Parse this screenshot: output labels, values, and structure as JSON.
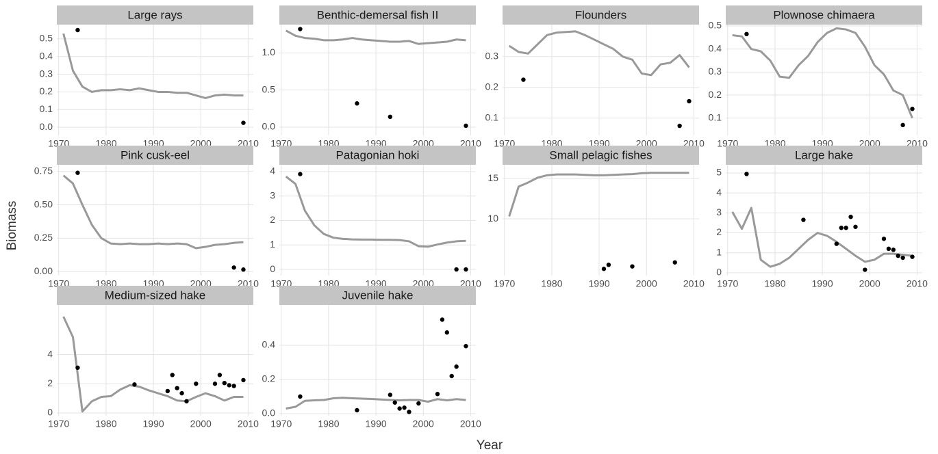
{
  "xlabel": "Year",
  "ylabel": "Biomass",
  "chart_data": [
    {
      "type": "line",
      "title": "Large rays",
      "xlim": [
        1969.6,
        2011.1
      ],
      "xticks": [
        1970,
        1980,
        1990,
        2000,
        2010
      ],
      "ylim": [
        -0.046,
        0.581
      ],
      "yticks": [
        {
          "value": 0,
          "label": "0.0"
        },
        0.1,
        0.2,
        0.3,
        0.4,
        0.5
      ],
      "grid": true,
      "series": [
        {
          "kind": "line",
          "color": "#999999",
          "x": [
            1971,
            1973,
            1975,
            1977,
            1979,
            1981,
            1983,
            1985,
            1987,
            1989,
            1991,
            1993,
            1995,
            1997,
            1999,
            2001,
            2003,
            2005,
            2007,
            2009
          ],
          "values": [
            0.53,
            0.32,
            0.23,
            0.2,
            0.21,
            0.21,
            0.215,
            0.21,
            0.22,
            0.21,
            0.2,
            0.2,
            0.195,
            0.195,
            0.18,
            0.165,
            0.18,
            0.185,
            0.18,
            0.18
          ]
        },
        {
          "kind": "scatter",
          "color": "#000000",
          "x": [
            1974,
            2009
          ],
          "values": [
            0.55,
            0.025
          ]
        }
      ]
    },
    {
      "type": "line",
      "title": "Benthic-demersal fish II",
      "xlim": [
        1969.6,
        2011.1
      ],
      "xticks": [
        1970,
        1980,
        1990,
        2000,
        2010
      ],
      "ylim": [
        -0.11,
        1.38
      ],
      "yticks": [
        {
          "value": 0,
          "label": "0.0"
        },
        0.5,
        {
          "value": 1,
          "label": "1.0"
        }
      ],
      "grid": true,
      "series": [
        {
          "kind": "line",
          "color": "#999999",
          "x": [
            1971,
            1973,
            1975,
            1977,
            1979,
            1981,
            1983,
            1985,
            1987,
            1989,
            1991,
            1993,
            1995,
            1997,
            1999,
            2001,
            2003,
            2005,
            2007,
            2009
          ],
          "values": [
            1.3,
            1.23,
            1.2,
            1.19,
            1.17,
            1.17,
            1.18,
            1.2,
            1.18,
            1.17,
            1.16,
            1.15,
            1.15,
            1.16,
            1.12,
            1.13,
            1.14,
            1.15,
            1.18,
            1.17
          ]
        },
        {
          "kind": "scatter",
          "color": "#000000",
          "x": [
            1974,
            1986,
            1993,
            2009
          ],
          "values": [
            1.32,
            0.32,
            0.14,
            0.02
          ]
        }
      ]
    },
    {
      "type": "line",
      "title": "Flounders",
      "xlim": [
        1969.6,
        2011.1
      ],
      "xticks": [
        1970,
        1980,
        1990,
        2000,
        2010
      ],
      "ylim": [
        0.044,
        0.404
      ],
      "yticks": [
        0.1,
        0.2,
        0.3
      ],
      "grid": true,
      "series": [
        {
          "kind": "line",
          "color": "#999999",
          "x": [
            1971,
            1973,
            1975,
            1977,
            1979,
            1981,
            1983,
            1985,
            1987,
            1989,
            1991,
            1993,
            1995,
            1997,
            1999,
            2001,
            2003,
            2005,
            2007,
            2009
          ],
          "values": [
            0.335,
            0.315,
            0.31,
            0.34,
            0.37,
            0.378,
            0.38,
            0.382,
            0.37,
            0.355,
            0.34,
            0.325,
            0.3,
            0.29,
            0.245,
            0.24,
            0.275,
            0.28,
            0.305,
            0.265
          ]
        },
        {
          "kind": "scatter",
          "color": "#000000",
          "x": [
            1974,
            2007,
            2009
          ],
          "values": [
            0.225,
            0.075,
            0.155
          ]
        }
      ]
    },
    {
      "type": "line",
      "title": "Plownose chimaera",
      "xlim": [
        1969.6,
        2011.1
      ],
      "xticks": [
        1970,
        1980,
        1990,
        2000,
        2010
      ],
      "ylim": [
        0.025,
        0.506
      ],
      "yticks": [
        0.1,
        0.2,
        0.3,
        0.4,
        0.5
      ],
      "grid": true,
      "series": [
        {
          "kind": "line",
          "color": "#999999",
          "x": [
            1971,
            1973,
            1975,
            1977,
            1979,
            1981,
            1983,
            1985,
            1987,
            1989,
            1991,
            1993,
            1995,
            1997,
            1999,
            2001,
            2003,
            2005,
            2007,
            2009
          ],
          "values": [
            0.46,
            0.455,
            0.4,
            0.39,
            0.35,
            0.28,
            0.275,
            0.33,
            0.37,
            0.43,
            0.47,
            0.49,
            0.485,
            0.47,
            0.41,
            0.33,
            0.29,
            0.22,
            0.2,
            0.1
          ]
        },
        {
          "kind": "scatter",
          "color": "#000000",
          "x": [
            1974,
            2007,
            2009
          ],
          "values": [
            0.465,
            0.07,
            0.14
          ]
        }
      ]
    },
    {
      "type": "line",
      "title": "Pink cusk-eel",
      "xlim": [
        1969.6,
        2011.1
      ],
      "xticks": [
        1970,
        1980,
        1990,
        2000,
        2010
      ],
      "ylim": [
        -0.03,
        0.8
      ],
      "yticks": [
        {
          "value": 0,
          "label": "0.00"
        },
        0.25,
        {
          "value": 0.5,
          "label": "0.50"
        },
        0.75
      ],
      "grid": true,
      "series": [
        {
          "kind": "line",
          "color": "#999999",
          "x": [
            1971,
            1973,
            1975,
            1977,
            1979,
            1981,
            1983,
            1985,
            1987,
            1989,
            1991,
            1993,
            1995,
            1997,
            1999,
            2001,
            2003,
            2005,
            2007,
            2009
          ],
          "values": [
            0.72,
            0.66,
            0.5,
            0.35,
            0.25,
            0.21,
            0.205,
            0.21,
            0.205,
            0.205,
            0.21,
            0.205,
            0.21,
            0.205,
            0.175,
            0.185,
            0.2,
            0.205,
            0.215,
            0.22
          ]
        },
        {
          "kind": "scatter",
          "color": "#000000",
          "x": [
            1974,
            2007,
            2009
          ],
          "values": [
            0.74,
            0.03,
            0.015
          ]
        }
      ]
    },
    {
      "type": "line",
      "title": "Patagonian hoki",
      "xlim": [
        1969.6,
        2011.1
      ],
      "xticks": [
        1970,
        1980,
        1990,
        2000,
        2010
      ],
      "ylim": [
        -0.25,
        4.28
      ],
      "yticks": [
        0,
        1,
        2,
        3,
        4
      ],
      "grid": true,
      "series": [
        {
          "kind": "line",
          "color": "#999999",
          "x": [
            1971,
            1973,
            1975,
            1977,
            1979,
            1981,
            1983,
            1985,
            1987,
            1989,
            1991,
            1993,
            1995,
            1997,
            1999,
            2001,
            2003,
            2005,
            2007,
            2009
          ],
          "values": [
            3.8,
            3.5,
            2.4,
            1.8,
            1.45,
            1.3,
            1.25,
            1.23,
            1.22,
            1.22,
            1.21,
            1.21,
            1.2,
            1.15,
            0.95,
            0.93,
            1.02,
            1.1,
            1.15,
            1.17
          ]
        },
        {
          "kind": "scatter",
          "color": "#000000",
          "x": [
            1974,
            2007,
            2009
          ],
          "values": [
            3.9,
            0,
            0
          ]
        }
      ]
    },
    {
      "type": "line",
      "title": "Small pelagic fishes",
      "xlim": [
        1969.6,
        2011.1
      ],
      "xticks": [
        1970,
        1980,
        1990,
        2000,
        2010
      ],
      "ylim": [
        2.97,
        16.7
      ],
      "yticks": [
        10,
        15
      ],
      "grid": true,
      "series": [
        {
          "kind": "line",
          "color": "#999999",
          "x": [
            1971,
            1973,
            1975,
            1977,
            1979,
            1981,
            1983,
            1985,
            1987,
            1989,
            1991,
            1993,
            1995,
            1997,
            1999,
            2001,
            2003,
            2005,
            2007,
            2009
          ],
          "values": [
            10.3,
            14,
            14.5,
            15.1,
            15.4,
            15.5,
            15.5,
            15.5,
            15.45,
            15.4,
            15.4,
            15.45,
            15.5,
            15.55,
            15.65,
            15.7,
            15.7,
            15.7,
            15.7,
            15.7
          ]
        },
        {
          "kind": "scatter",
          "color": "#000000",
          "x": [
            1991,
            1992,
            1997,
            2006
          ],
          "values": [
            3.8,
            4.3,
            4.1,
            4.6
          ]
        }
      ]
    },
    {
      "type": "line",
      "title": "Large hake",
      "xlim": [
        1969.6,
        2011.1
      ],
      "xticks": [
        1970,
        1980,
        1990,
        2000,
        2010
      ],
      "ylim": [
        -0.14,
        5.41
      ],
      "yticks": [
        0,
        1,
        2,
        3,
        4,
        5
      ],
      "grid": true,
      "series": [
        {
          "kind": "line",
          "color": "#999999",
          "x": [
            1971,
            1973,
            1975,
            1977,
            1979,
            1981,
            1983,
            1985,
            1987,
            1989,
            1991,
            1993,
            1995,
            1997,
            1999,
            2001,
            2003,
            2005,
            2007,
            2009
          ],
          "values": [
            3.05,
            2.2,
            3.25,
            0.65,
            0.3,
            0.45,
            0.75,
            1.2,
            1.65,
            2,
            1.85,
            1.55,
            1.2,
            0.85,
            0.55,
            0.65,
            0.95,
            0.95,
            0.9,
            0.85
          ]
        },
        {
          "kind": "scatter",
          "color": "#000000",
          "x": [
            1974,
            1986,
            1993,
            1994,
            1995,
            1996,
            1997,
            1999,
            2003,
            2004,
            2005,
            2006,
            2007,
            2009
          ],
          "values": [
            4.95,
            2.65,
            1.45,
            2.25,
            2.25,
            2.8,
            2.3,
            0.15,
            1.7,
            1.2,
            1.15,
            0.85,
            0.75,
            0.8
          ]
        }
      ]
    },
    {
      "type": "line",
      "title": "Medium-sized hake",
      "xlim": [
        1969.6,
        2011.1
      ],
      "xticks": [
        1970,
        1980,
        1990,
        2000,
        2010
      ],
      "ylim": [
        -0.19,
        7.4
      ],
      "yticks": [
        0,
        2,
        4
      ],
      "grid": true,
      "series": [
        {
          "kind": "line",
          "color": "#999999",
          "x": [
            1971,
            1973,
            1975,
            1977,
            1979,
            1981,
            1983,
            1985,
            1987,
            1989,
            1991,
            1993,
            1995,
            1997,
            1999,
            2001,
            2003,
            2005,
            2007,
            2009
          ],
          "values": [
            6.6,
            5.2,
            0.1,
            0.8,
            1.1,
            1.15,
            1.6,
            1.9,
            1.8,
            1.55,
            1.35,
            1.15,
            0.85,
            0.8,
            1.1,
            1.35,
            1.15,
            0.85,
            1.1,
            1.1
          ]
        },
        {
          "kind": "scatter",
          "color": "#000000",
          "x": [
            1974,
            1986,
            1993,
            1994,
            1995,
            1996,
            1997,
            1999,
            2003,
            2004,
            2005,
            2006,
            2007,
            2009
          ],
          "values": [
            3.1,
            1.95,
            1.5,
            2.6,
            1.7,
            1.35,
            0.8,
            2,
            2,
            2.6,
            2.05,
            1.9,
            1.85,
            2.25
          ]
        }
      ]
    },
    {
      "type": "line",
      "title": "Juvenile hake",
      "xlim": [
        1969.6,
        2011.1
      ],
      "xticks": [
        1970,
        1980,
        1990,
        2000,
        2010
      ],
      "ylim": [
        -0.012,
        0.636
      ],
      "yticks": [
        {
          "value": 0,
          "label": "0.0"
        },
        0.2,
        0.4
      ],
      "grid": true,
      "series": [
        {
          "kind": "line",
          "color": "#999999",
          "x": [
            1971,
            1973,
            1975,
            1977,
            1979,
            1981,
            1983,
            1985,
            1987,
            1989,
            1991,
            1993,
            1995,
            1997,
            1999,
            2001,
            2003,
            2005,
            2007,
            2009
          ],
          "values": [
            0.03,
            0.04,
            0.075,
            0.078,
            0.08,
            0.09,
            0.093,
            0.09,
            0.088,
            0.086,
            0.083,
            0.08,
            0.078,
            0.08,
            0.08,
            0.07,
            0.085,
            0.078,
            0.085,
            0.08
          ]
        },
        {
          "kind": "scatter",
          "color": "#000000",
          "x": [
            1974,
            1986,
            1993,
            1994,
            1995,
            1996,
            1997,
            1999,
            2003,
            2004,
            2005,
            2006,
            2007,
            2009
          ],
          "values": [
            0.1,
            0.02,
            0.11,
            0.065,
            0.03,
            0.035,
            0.01,
            0.06,
            0.115,
            0.55,
            0.475,
            0.22,
            0.275,
            0.395
          ]
        }
      ]
    }
  ]
}
